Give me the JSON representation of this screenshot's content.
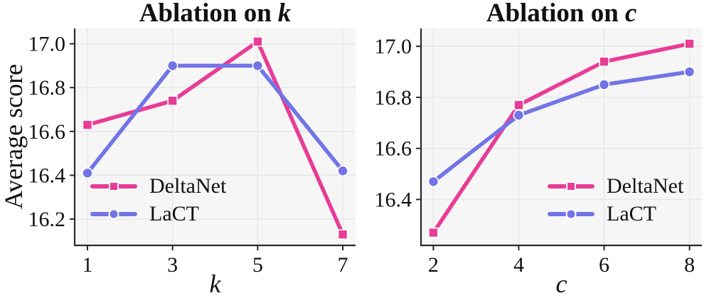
{
  "figure": {
    "kind": "ablation-line-charts",
    "background": "#ffffff"
  },
  "colors": {
    "deltanet": "#e83c96",
    "lact": "#7274e6",
    "plot_background": "#f6f6f6",
    "gridline": "#e7e7e7",
    "spine": "#2a2a2a",
    "text": "#111111",
    "marker_edge": "#ffffff"
  },
  "chart_data": [
    {
      "type": "line",
      "title": "Ablation on k",
      "title_prefix": "Ablation on",
      "title_var": "k",
      "xlabel": "k",
      "ylabel": "Average score",
      "x": [
        1,
        3,
        5,
        7
      ],
      "xtick_labels": [
        "1",
        "3",
        "5",
        "7"
      ],
      "yticks": [
        16.2,
        16.4,
        16.6,
        16.8,
        17.0
      ],
      "ytick_labels": [
        "16.2",
        "16.4",
        "16.6",
        "16.8",
        "17.0"
      ],
      "xlim": [
        0.7,
        7.3
      ],
      "ylim": [
        16.08,
        17.07
      ],
      "grid": true,
      "legend_position": "lower-left",
      "series": [
        {
          "name": "DeltaNet",
          "color_key": "deltanet",
          "marker": "square",
          "values": [
            16.63,
            16.74,
            17.01,
            16.13
          ]
        },
        {
          "name": "LaCT",
          "color_key": "lact",
          "marker": "circle",
          "values": [
            16.41,
            16.9,
            16.9,
            16.42
          ]
        }
      ]
    },
    {
      "type": "line",
      "title": "Ablation on c",
      "title_prefix": "Ablation on",
      "title_var": "c",
      "xlabel": "c",
      "ylabel": "",
      "x": [
        2,
        4,
        6,
        8
      ],
      "xtick_labels": [
        "2",
        "4",
        "6",
        "8"
      ],
      "yticks": [
        16.4,
        16.6,
        16.8,
        17.0
      ],
      "ytick_labels": [
        "16.4",
        "16.6",
        "16.8",
        "17.0"
      ],
      "xlim": [
        1.71,
        8.29
      ],
      "ylim": [
        16.22,
        17.07
      ],
      "grid": true,
      "legend_position": "lower-right",
      "series": [
        {
          "name": "DeltaNet",
          "color_key": "deltanet",
          "marker": "square",
          "values": [
            16.27,
            16.77,
            16.94,
            17.01
          ]
        },
        {
          "name": "LaCT",
          "color_key": "lact",
          "marker": "circle",
          "values": [
            16.47,
            16.73,
            16.85,
            16.9
          ]
        }
      ]
    }
  ]
}
